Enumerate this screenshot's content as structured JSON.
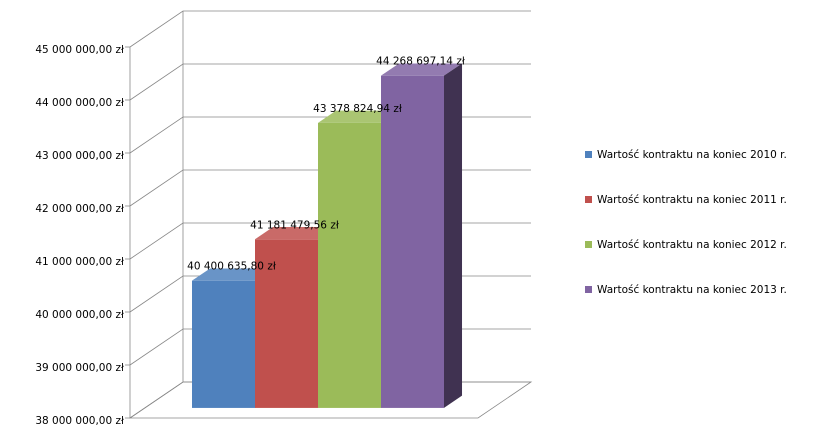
{
  "chart_data": {
    "type": "bar3d",
    "categories": [
      null
    ],
    "series": [
      {
        "name": "Wartość kontraktu na koniec 2010 r.",
        "color": "#4f81bd",
        "values": [
          40400635.8
        ],
        "value_labels": [
          "40 400 635,80 zł"
        ]
      },
      {
        "name": "Wartość kontraktu na koniec 2011 r.",
        "color": "#c0504d",
        "values": [
          41181479.56
        ],
        "value_labels": [
          "41 181 479,56 zł"
        ]
      },
      {
        "name": "Wartość kontraktu na koniec 2012 r.",
        "color": "#9bbb59",
        "values": [
          43378824.94
        ],
        "value_labels": [
          "43 378 824,94 zł"
        ]
      },
      {
        "name": "Wartość kontraktu na koniec 2013 r.",
        "color": "#8064a2",
        "values": [
          44268697.14
        ],
        "value_labels": [
          "44 268 697,14 zł"
        ]
      }
    ],
    "ylim": [
      38000000,
      45000000
    ],
    "yticks": [
      {
        "value": 38000000,
        "label": "38 000 000,00 zł"
      },
      {
        "value": 39000000,
        "label": "39 000 000,00 zł"
      },
      {
        "value": 40000000,
        "label": "40 000 000,00 zł"
      },
      {
        "value": 41000000,
        "label": "41 000 000,00 zł"
      },
      {
        "value": 42000000,
        "label": "42 000 000,00 zł"
      },
      {
        "value": 43000000,
        "label": "43 000 000,00 zł"
      },
      {
        "value": 44000000,
        "label": "44 000 000,00 zł"
      },
      {
        "value": 45000000,
        "label": "45 000 000,00 zł"
      }
    ],
    "grid": true,
    "legend": "right"
  }
}
